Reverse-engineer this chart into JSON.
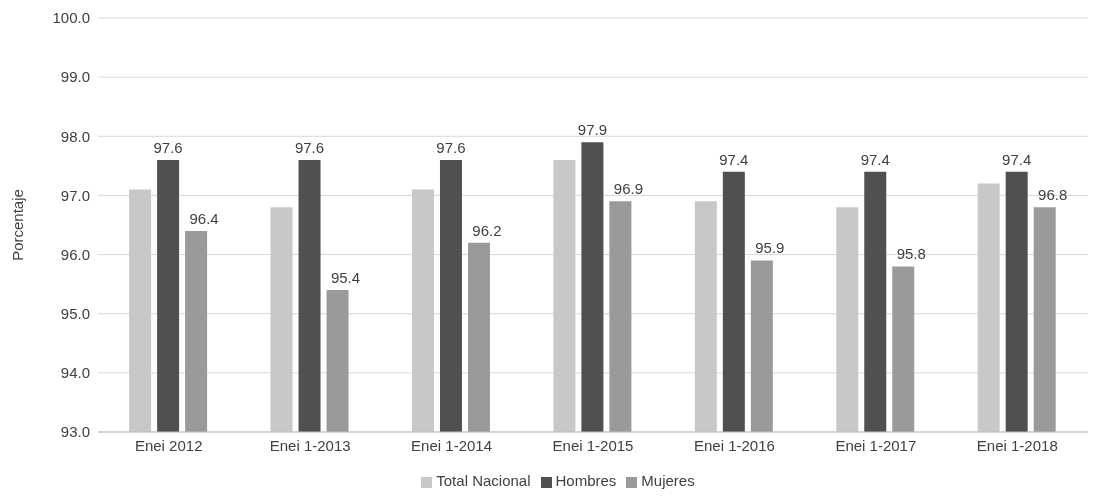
{
  "chart_data": {
    "type": "bar",
    "ylabel": "Porcentaje",
    "categories": [
      "Enei 2012",
      "Enei 1-2013",
      "Enei 1-2014",
      "Enei 1-2015",
      "Enei 1-2016",
      "Enei 1-2017",
      "Enei 1-2018"
    ],
    "series": [
      {
        "name": "Total Nacional",
        "color": "#c8c8c8",
        "values": [
          97.1,
          96.8,
          97.1,
          97.6,
          96.9,
          96.8,
          97.2
        ]
      },
      {
        "name": "Hombres",
        "color": "#505050",
        "values": [
          97.6,
          97.6,
          97.6,
          97.9,
          97.4,
          97.4,
          97.4
        ],
        "value_labels": [
          "97.6",
          "97.6",
          "97.6",
          "97.9",
          "97.4",
          "97.4",
          "97.4"
        ]
      },
      {
        "name": "Mujeres",
        "color": "#9a9a9a",
        "values": [
          96.4,
          95.4,
          96.2,
          96.9,
          95.9,
          95.8,
          96.8
        ],
        "value_labels": [
          "96.4",
          "95.4",
          "96.2",
          "96.9",
          "95.9",
          "95.8",
          "96.8"
        ]
      }
    ],
    "ylim": [
      93,
      100
    ],
    "yticks": [
      {
        "value": 93,
        "label": "93.0"
      },
      {
        "value": 94,
        "label": "94.0"
      },
      {
        "value": 95,
        "label": "95.0"
      },
      {
        "value": 96,
        "label": "96.0"
      },
      {
        "value": 97,
        "label": "97.0"
      },
      {
        "value": 98,
        "label": "98.0"
      },
      {
        "value": 99,
        "label": "99.0"
      },
      {
        "value": 100,
        "label": "100.0"
      }
    ],
    "grid": "y",
    "legend": "bottom"
  }
}
